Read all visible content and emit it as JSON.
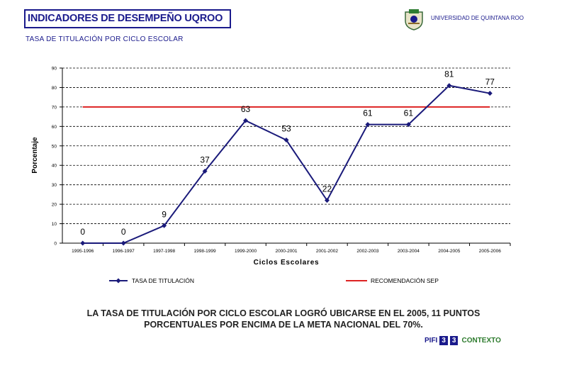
{
  "header": {
    "title": "INDICADORES DE DESEMPEÑO UQROO",
    "subtitle": "TASA DE TITULACIÓN POR CICLO ESCOLAR",
    "university": "UNIVERSIDAD DE QUINTANA ROO"
  },
  "summary": {
    "line1": "LA TASA DE TITULACIÓN POR CICLO ESCOLAR LOGRÓ UBICARSE EN EL 2005, 11 PUNTOS",
    "line2": "PORCENTUALES POR ENCIMA DE LA META NACIONAL DEL 70%."
  },
  "footer": {
    "prefix": "PIFI",
    "box1": "3",
    "box2": "3",
    "suffix": "CONTEXTO"
  },
  "colors": {
    "series": "#1a1a7a",
    "target": "#dd2222",
    "title": "#1a1a8c"
  },
  "chart_data": {
    "type": "line",
    "xlabel": "Ciclos Escolares",
    "ylabel": "Porcentaje",
    "ylim": [
      0,
      90
    ],
    "yticks": [
      0,
      10,
      20,
      30,
      40,
      50,
      60,
      70,
      80,
      90
    ],
    "grid": "horizontal-dashed",
    "legend_position": "bottom",
    "categories": [
      "1995-1996",
      "1996-1997",
      "1997-1998",
      "1998-1999",
      "1999-2000",
      "2000-2001",
      "2001-2002",
      "2002-2003",
      "2003-2004",
      "2004-2005",
      "2005-2006"
    ],
    "series": [
      {
        "name": "TASA DE TITULACIÓN",
        "values": [
          0,
          0,
          9,
          37,
          63,
          53,
          22,
          61,
          61,
          81,
          77
        ],
        "marker": "diamond",
        "data_labels": true
      },
      {
        "name": "RECOMENDACIÓN SEP",
        "values": [
          70,
          70,
          70,
          70,
          70,
          70,
          70,
          70,
          70,
          70,
          70
        ],
        "marker": "none",
        "data_labels": false
      }
    ]
  }
}
